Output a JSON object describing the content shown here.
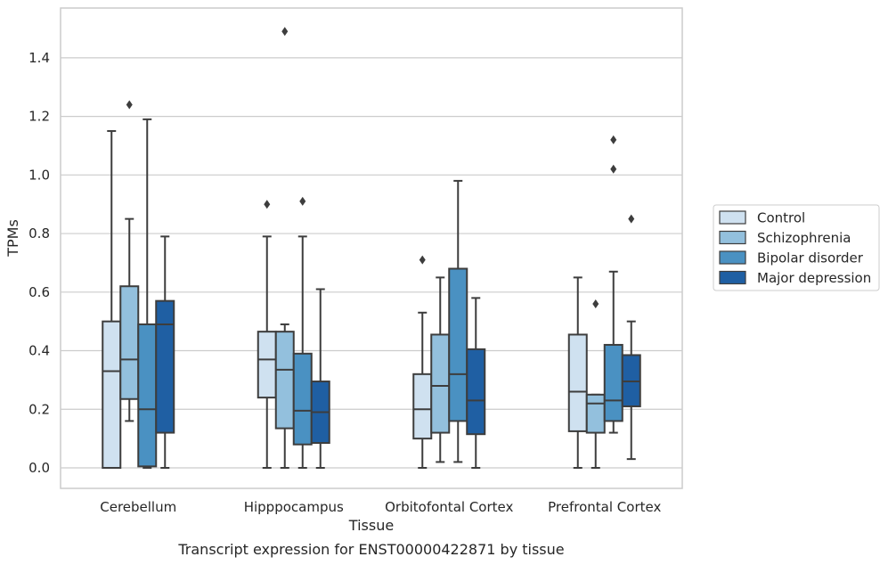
{
  "chart_data": {
    "type": "boxplot",
    "xlabel": "Tissue",
    "ylabel": "TPMs",
    "caption": "Transcript expression for ENST00000422871 by tissue",
    "ylim": [
      -0.07,
      1.57
    ],
    "yticks": [
      0.0,
      0.2,
      0.4,
      0.6,
      0.8,
      1.0,
      1.2,
      1.4
    ],
    "ytick_labels": [
      "0.0",
      "0.2",
      "0.4",
      "0.6",
      "0.8",
      "1.0",
      "1.2",
      "1.4"
    ],
    "grid": "horizontal",
    "legend_placement": "right",
    "categories": [
      "Cerebellum",
      "Hipppocampus",
      "Orbitofontal Cortex",
      "Prefrontal Cortex"
    ],
    "series": [
      {
        "name": "Control",
        "color": "#cfe1f0",
        "boxes": [
          {
            "whislo": 0.0,
            "q1": 0.0,
            "med": 0.33,
            "q3": 0.5,
            "whishi": 1.15,
            "fliers": []
          },
          {
            "whislo": 0.0,
            "q1": 0.24,
            "med": 0.37,
            "q3": 0.465,
            "whishi": 0.79,
            "fliers": [
              0.9
            ]
          },
          {
            "whislo": 0.0,
            "q1": 0.1,
            "med": 0.2,
            "q3": 0.32,
            "whishi": 0.53,
            "fliers": [
              0.71
            ]
          },
          {
            "whislo": 0.0,
            "q1": 0.125,
            "med": 0.26,
            "q3": 0.455,
            "whishi": 0.65,
            "fliers": []
          }
        ]
      },
      {
        "name": "Schizophrenia",
        "color": "#93c0dd",
        "boxes": [
          {
            "whislo": 0.16,
            "q1": 0.235,
            "med": 0.37,
            "q3": 0.62,
            "whishi": 0.85,
            "fliers": [
              1.24
            ]
          },
          {
            "whislo": 0.0,
            "q1": 0.135,
            "med": 0.335,
            "q3": 0.465,
            "whishi": 0.49,
            "fliers": [
              1.49
            ]
          },
          {
            "whislo": 0.02,
            "q1": 0.12,
            "med": 0.28,
            "q3": 0.455,
            "whishi": 0.65,
            "fliers": []
          },
          {
            "whislo": 0.0,
            "q1": 0.12,
            "med": 0.22,
            "q3": 0.25,
            "whishi": 0.25,
            "fliers": [
              0.56
            ]
          }
        ]
      },
      {
        "name": "Bipolar disorder",
        "color": "#4a91c2",
        "boxes": [
          {
            "whislo": 0.0,
            "q1": 0.005,
            "med": 0.2,
            "q3": 0.49,
            "whishi": 1.19,
            "fliers": []
          },
          {
            "whislo": 0.0,
            "q1": 0.08,
            "med": 0.195,
            "q3": 0.39,
            "whishi": 0.79,
            "fliers": [
              0.91
            ]
          },
          {
            "whislo": 0.02,
            "q1": 0.16,
            "med": 0.32,
            "q3": 0.68,
            "whishi": 0.98,
            "fliers": []
          },
          {
            "whislo": 0.12,
            "q1": 0.16,
            "med": 0.23,
            "q3": 0.42,
            "whishi": 0.67,
            "fliers": [
              1.02,
              1.12
            ]
          }
        ]
      },
      {
        "name": "Major depression",
        "color": "#1f5fa3",
        "boxes": [
          {
            "whislo": 0.0,
            "q1": 0.12,
            "med": 0.49,
            "q3": 0.57,
            "whishi": 0.79,
            "fliers": []
          },
          {
            "whislo": 0.0,
            "q1": 0.085,
            "med": 0.19,
            "q3": 0.295,
            "whishi": 0.61,
            "fliers": []
          },
          {
            "whislo": 0.0,
            "q1": 0.115,
            "med": 0.23,
            "q3": 0.405,
            "whishi": 0.58,
            "fliers": []
          },
          {
            "whislo": 0.03,
            "q1": 0.21,
            "med": 0.295,
            "q3": 0.385,
            "whishi": 0.5,
            "fliers": [
              0.85
            ]
          }
        ]
      }
    ],
    "colors": {
      "box_edge": "#3d3d3d",
      "grid": "#cccccc",
      "frame": "#cccccc",
      "text": "#262626"
    }
  }
}
